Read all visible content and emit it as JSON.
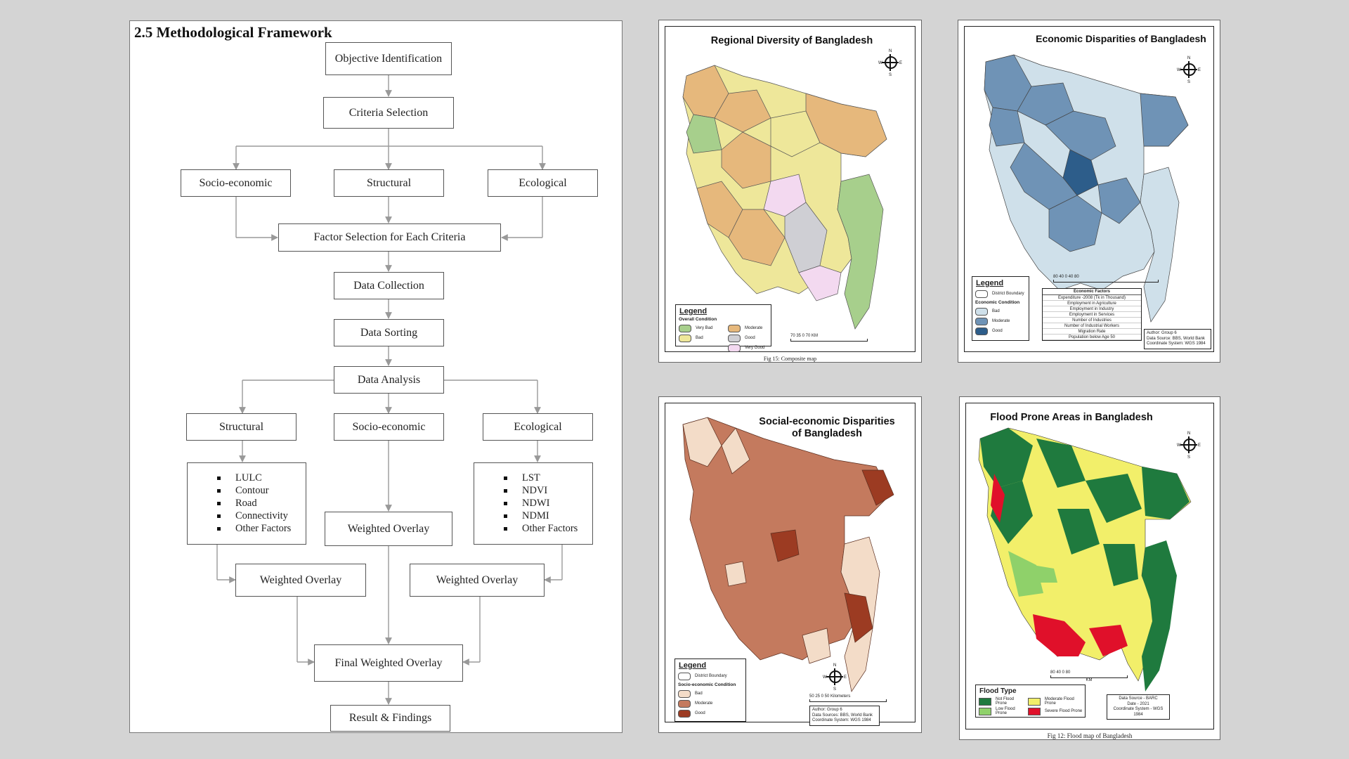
{
  "flowchart": {
    "heading": "2.5 Methodological Framework",
    "objective": "Objective Identification",
    "criteria": "Criteria Selection",
    "criteria_types": [
      "Socio-economic",
      "Structural",
      "Ecological"
    ],
    "factor_selection": "Factor Selection for Each Criteria",
    "data_collection": "Data Collection",
    "data_sorting": "Data Sorting",
    "data_analysis": "Data Analysis",
    "analysis_types": [
      "Structural",
      "Socio-economic",
      "Ecological"
    ],
    "structural_factors": [
      "LULC",
      "Contour",
      "Road",
      "Connectivity",
      "Other Factors"
    ],
    "ecological_factors": [
      "LST",
      "NDVI",
      "NDWI",
      "NDMI",
      "Other Factors"
    ],
    "weighted_overlay": "Weighted Overlay",
    "final_overlay": "Final Weighted Overlay",
    "result": "Result & Findings"
  },
  "maps": {
    "regional": {
      "title": "Regional Diversity of Bangladesh",
      "legend_title": "Legend",
      "legend_sub": "Overall Condition",
      "legend_items": [
        {
          "label": "Very Bad",
          "color": "#a7cf8c"
        },
        {
          "label": "Moderate",
          "color": "#e6b87c"
        },
        {
          "label": "Bad",
          "color": "#eee79a"
        },
        {
          "label": "Good",
          "color": "#cfcfd4"
        },
        {
          "label": "Very Good",
          "color": "#f3d9f0"
        }
      ],
      "scale": "70   35    0              70 KM",
      "caption": "Fig 15: Composite map"
    },
    "economic": {
      "title": "Economic Disparities of Bangladesh",
      "legend_title": "Legend",
      "boundary_label": "District Boundary",
      "legend_sub": "Economic Condition",
      "legend_items": [
        {
          "label": "Bad",
          "color": "#cfe0ea"
        },
        {
          "label": "Moderate",
          "color": "#6f93b6"
        },
        {
          "label": "Good",
          "color": "#2d5d8a"
        }
      ],
      "factors_title": "Economic Factors",
      "factors": [
        "Expenditure -2008 (Tk in Thousand)",
        "Employment in Agriculture",
        "Employment in Industry",
        "Employment in Services",
        "Number of Industries",
        "Number of Industrial Workers",
        "Migration Rate",
        "Population below Age 50"
      ],
      "scale": "80     40      0       40      80",
      "info": [
        "Author: Group 6",
        "Data Source: BBS, World Bank",
        "Coordinate System: WGS 1984"
      ]
    },
    "social": {
      "title_line1": "Social-economic Disparities",
      "title_line2": "of Bangladesh",
      "legend_title": "Legend",
      "boundary_label": "District Boundary",
      "legend_sub": "Socio-economic Condition",
      "legend_items": [
        {
          "label": "Bad",
          "color": "#f3dcc8"
        },
        {
          "label": "Moderate",
          "color": "#c47a5e"
        },
        {
          "label": "Good",
          "color": "#9c3b22"
        }
      ],
      "scale": "50   25   0         50 Kilometers",
      "info": [
        "Author: Group 6",
        "Data Sources: BBS, World Bank",
        "Coordinate System: WGS 1984"
      ]
    },
    "flood": {
      "title": "Flood Prone Areas in Bangladesh",
      "legend_title": "Flood Type",
      "legend_items": [
        {
          "label": "Not Flood Prone",
          "color": "#1f7a3e"
        },
        {
          "label": "Moderate Flood Prone",
          "color": "#f2ef6a"
        },
        {
          "label": "Low Flood Prone",
          "color": "#8fd16a"
        },
        {
          "label": "Severe Flood Prone",
          "color": "#e0102a"
        }
      ],
      "scale_top": "80    40    0           80",
      "scale_unit": "KM",
      "info": [
        "Data Source - BARC",
        "Date - 2021",
        "Coordinate System - WGS 1984"
      ],
      "caption": "Fig 12: Flood map of Bangladesh"
    }
  }
}
